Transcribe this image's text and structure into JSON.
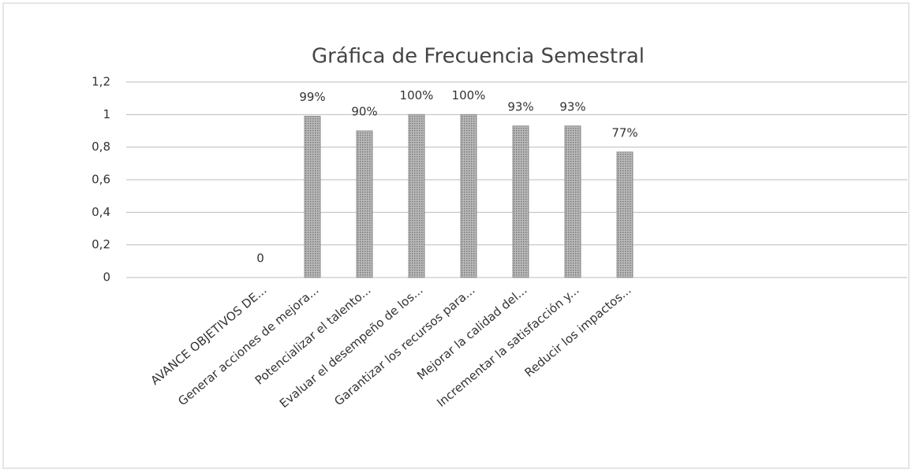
{
  "chart_data": {
    "type": "bar",
    "title": "Gráfica de Frecuencia Semestral",
    "categories": [
      "AVANCE OBJETIVOS DE...",
      "Generar acciones de mejora...",
      "Potencializar el talento...",
      "Evaluar el desempeño de los...",
      "Garantizar los recursos para...",
      "Mejorar la calidad del...",
      "Incrementar la satisfacción y...",
      "Reducir los impactos..."
    ],
    "values": [
      0,
      0.99,
      0.9,
      1.0,
      1.0,
      0.93,
      0.93,
      0.77
    ],
    "value_labels": [
      "0",
      "99%",
      "90%",
      "100%",
      "100%",
      "93%",
      "93%",
      "77%"
    ],
    "color": "#8f8f8f",
    "ylim": [
      0,
      1.2
    ],
    "yticks": [
      0,
      {
        "value": 0.2,
        "label": "0,2"
      },
      {
        "value": 0.4,
        "label": "0,4"
      },
      {
        "value": 0.6,
        "label": "0,6"
      },
      {
        "value": 0.8,
        "label": "0,8"
      },
      1,
      {
        "value": 1.2,
        "label": "1,2"
      }
    ],
    "grid": true
  }
}
